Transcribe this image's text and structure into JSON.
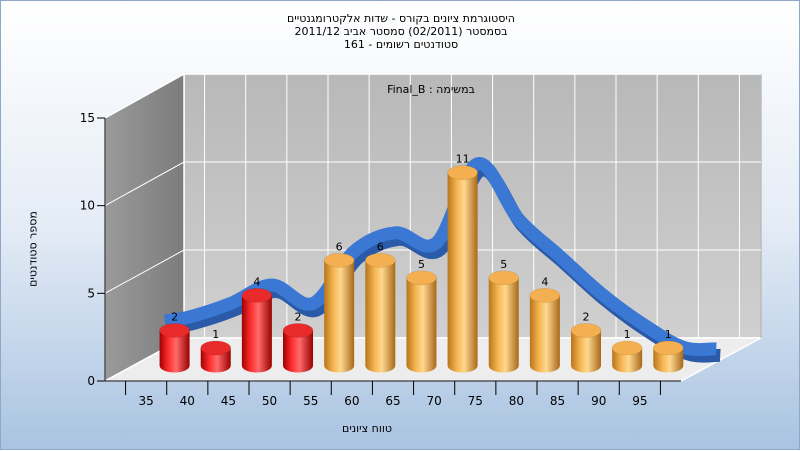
{
  "title_lines": [
    "היסטוגרמת ציונים בקורס - שדות אלקטרומגנטיים",
    "בסמסטר  (02/2011)  סמסטר אביב 2011/12",
    "סטודנטים רשומים - 161"
  ],
  "series_label": "Final_B : במשימה",
  "chart_data": {
    "type": "bar",
    "title": "היסטוגרמת ציונים בקורס - שדות אלקטרומגנטיים",
    "subtitle": [
      "בסמסטר  (02/2011)  סמסטר אביב 2011/12",
      "סטודנטים רשומים - 161"
    ],
    "xlabel": "טווח ציונים",
    "ylabel": "מספר סטודנטים",
    "categories": [
      "35",
      "40",
      "45",
      "50",
      "55",
      "60",
      "65",
      "70",
      "75",
      "80",
      "85",
      "90",
      "95"
    ],
    "values": [
      2,
      1,
      4,
      2,
      6,
      6,
      5,
      11,
      5,
      4,
      2,
      1,
      1
    ],
    "bar_colors": [
      "#e01818",
      "#e01818",
      "#e01818",
      "#e01818",
      "#f0a030",
      "#f0a030",
      "#f0a030",
      "#f0a030",
      "#f0a030",
      "#f0a030",
      "#f0a030",
      "#f0a030",
      "#f0a030"
    ],
    "y_ticks": [
      0,
      5,
      10,
      15
    ],
    "ylim": [
      0,
      15
    ],
    "grid": true,
    "trend_curve": {
      "color": "#3a78d4",
      "values": [
        2.4,
        3.2,
        4.3,
        3.2,
        6.3,
        7.4,
        6.8,
        11.5,
        8.2,
        6.0,
        3.8,
        2.0,
        0.6
      ]
    }
  }
}
